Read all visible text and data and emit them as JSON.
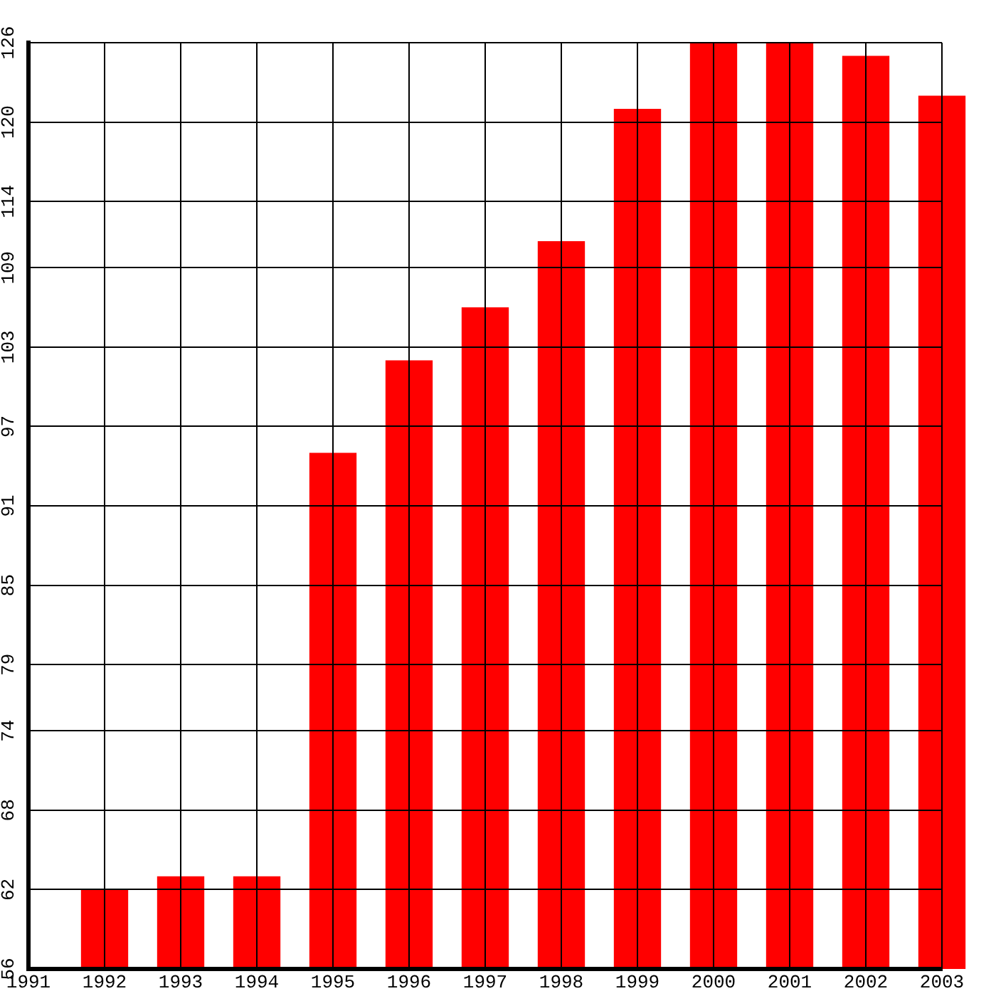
{
  "chart_data": {
    "type": "bar",
    "x": [
      1992,
      1993,
      1994,
      1995,
      1996,
      1997,
      1998,
      1999,
      2000,
      2001,
      2002,
      2003
    ],
    "values": [
      62,
      63,
      63,
      95,
      102,
      106,
      111,
      121,
      126,
      126,
      125,
      122
    ],
    "color": "#ff0000",
    "xlim": [
      1991,
      2003
    ],
    "xticks": [
      1991,
      1992,
      1993,
      1994,
      1995,
      1996,
      1997,
      1998,
      1999,
      2000,
      2001,
      2002,
      2003
    ],
    "ylim": [
      56,
      126
    ],
    "yticks": [
      56,
      62,
      68,
      74,
      79,
      85,
      91,
      97,
      103,
      109,
      114,
      120,
      126
    ],
    "grid": true
  }
}
